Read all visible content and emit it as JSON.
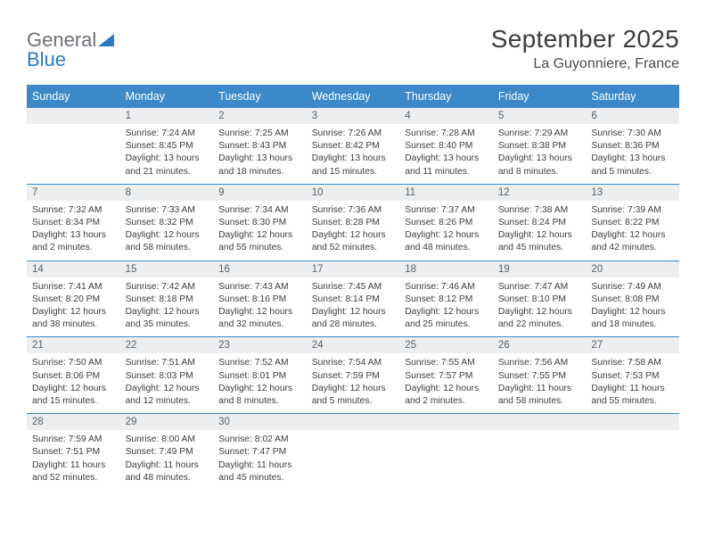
{
  "logo": {
    "word1": "General",
    "word2": "Blue"
  },
  "title": "September 2025",
  "location": "La Guyonniere, France",
  "colors": {
    "header_bg": "#3b89c9",
    "header_text": "#ffffff",
    "daynum_bg": "#eceeef",
    "daynum_text": "#5d6064",
    "row_divider": "#3b89c9",
    "body_text": "#3c3d3f",
    "logo_gray": "#6d7176",
    "logo_blue": "#2a7bbf"
  },
  "weekdays": [
    "Sunday",
    "Monday",
    "Tuesday",
    "Wednesday",
    "Thursday",
    "Friday",
    "Saturday"
  ],
  "weeks": [
    [
      {
        "empty": true
      },
      {
        "n": "1",
        "sr": "Sunrise: 7:24 AM",
        "ss": "Sunset: 8:45 PM",
        "d1": "Daylight: 13 hours",
        "d2": "and 21 minutes."
      },
      {
        "n": "2",
        "sr": "Sunrise: 7:25 AM",
        "ss": "Sunset: 8:43 PM",
        "d1": "Daylight: 13 hours",
        "d2": "and 18 minutes."
      },
      {
        "n": "3",
        "sr": "Sunrise: 7:26 AM",
        "ss": "Sunset: 8:42 PM",
        "d1": "Daylight: 13 hours",
        "d2": "and 15 minutes."
      },
      {
        "n": "4",
        "sr": "Sunrise: 7:28 AM",
        "ss": "Sunset: 8:40 PM",
        "d1": "Daylight: 13 hours",
        "d2": "and 11 minutes."
      },
      {
        "n": "5",
        "sr": "Sunrise: 7:29 AM",
        "ss": "Sunset: 8:38 PM",
        "d1": "Daylight: 13 hours",
        "d2": "and 8 minutes."
      },
      {
        "n": "6",
        "sr": "Sunrise: 7:30 AM",
        "ss": "Sunset: 8:36 PM",
        "d1": "Daylight: 13 hours",
        "d2": "and 5 minutes."
      }
    ],
    [
      {
        "n": "7",
        "sr": "Sunrise: 7:32 AM",
        "ss": "Sunset: 8:34 PM",
        "d1": "Daylight: 13 hours",
        "d2": "and 2 minutes."
      },
      {
        "n": "8",
        "sr": "Sunrise: 7:33 AM",
        "ss": "Sunset: 8:32 PM",
        "d1": "Daylight: 12 hours",
        "d2": "and 58 minutes."
      },
      {
        "n": "9",
        "sr": "Sunrise: 7:34 AM",
        "ss": "Sunset: 8:30 PM",
        "d1": "Daylight: 12 hours",
        "d2": "and 55 minutes."
      },
      {
        "n": "10",
        "sr": "Sunrise: 7:36 AM",
        "ss": "Sunset: 8:28 PM",
        "d1": "Daylight: 12 hours",
        "d2": "and 52 minutes."
      },
      {
        "n": "11",
        "sr": "Sunrise: 7:37 AM",
        "ss": "Sunset: 8:26 PM",
        "d1": "Daylight: 12 hours",
        "d2": "and 48 minutes."
      },
      {
        "n": "12",
        "sr": "Sunrise: 7:38 AM",
        "ss": "Sunset: 8:24 PM",
        "d1": "Daylight: 12 hours",
        "d2": "and 45 minutes."
      },
      {
        "n": "13",
        "sr": "Sunrise: 7:39 AM",
        "ss": "Sunset: 8:22 PM",
        "d1": "Daylight: 12 hours",
        "d2": "and 42 minutes."
      }
    ],
    [
      {
        "n": "14",
        "sr": "Sunrise: 7:41 AM",
        "ss": "Sunset: 8:20 PM",
        "d1": "Daylight: 12 hours",
        "d2": "and 38 minutes."
      },
      {
        "n": "15",
        "sr": "Sunrise: 7:42 AM",
        "ss": "Sunset: 8:18 PM",
        "d1": "Daylight: 12 hours",
        "d2": "and 35 minutes."
      },
      {
        "n": "16",
        "sr": "Sunrise: 7:43 AM",
        "ss": "Sunset: 8:16 PM",
        "d1": "Daylight: 12 hours",
        "d2": "and 32 minutes."
      },
      {
        "n": "17",
        "sr": "Sunrise: 7:45 AM",
        "ss": "Sunset: 8:14 PM",
        "d1": "Daylight: 12 hours",
        "d2": "and 28 minutes."
      },
      {
        "n": "18",
        "sr": "Sunrise: 7:46 AM",
        "ss": "Sunset: 8:12 PM",
        "d1": "Daylight: 12 hours",
        "d2": "and 25 minutes."
      },
      {
        "n": "19",
        "sr": "Sunrise: 7:47 AM",
        "ss": "Sunset: 8:10 PM",
        "d1": "Daylight: 12 hours",
        "d2": "and 22 minutes."
      },
      {
        "n": "20",
        "sr": "Sunrise: 7:49 AM",
        "ss": "Sunset: 8:08 PM",
        "d1": "Daylight: 12 hours",
        "d2": "and 18 minutes."
      }
    ],
    [
      {
        "n": "21",
        "sr": "Sunrise: 7:50 AM",
        "ss": "Sunset: 8:06 PM",
        "d1": "Daylight: 12 hours",
        "d2": "and 15 minutes."
      },
      {
        "n": "22",
        "sr": "Sunrise: 7:51 AM",
        "ss": "Sunset: 8:03 PM",
        "d1": "Daylight: 12 hours",
        "d2": "and 12 minutes."
      },
      {
        "n": "23",
        "sr": "Sunrise: 7:52 AM",
        "ss": "Sunset: 8:01 PM",
        "d1": "Daylight: 12 hours",
        "d2": "and 8 minutes."
      },
      {
        "n": "24",
        "sr": "Sunrise: 7:54 AM",
        "ss": "Sunset: 7:59 PM",
        "d1": "Daylight: 12 hours",
        "d2": "and 5 minutes."
      },
      {
        "n": "25",
        "sr": "Sunrise: 7:55 AM",
        "ss": "Sunset: 7:57 PM",
        "d1": "Daylight: 12 hours",
        "d2": "and 2 minutes."
      },
      {
        "n": "26",
        "sr": "Sunrise: 7:56 AM",
        "ss": "Sunset: 7:55 PM",
        "d1": "Daylight: 11 hours",
        "d2": "and 58 minutes."
      },
      {
        "n": "27",
        "sr": "Sunrise: 7:58 AM",
        "ss": "Sunset: 7:53 PM",
        "d1": "Daylight: 11 hours",
        "d2": "and 55 minutes."
      }
    ],
    [
      {
        "n": "28",
        "sr": "Sunrise: 7:59 AM",
        "ss": "Sunset: 7:51 PM",
        "d1": "Daylight: 11 hours",
        "d2": "and 52 minutes."
      },
      {
        "n": "29",
        "sr": "Sunrise: 8:00 AM",
        "ss": "Sunset: 7:49 PM",
        "d1": "Daylight: 11 hours",
        "d2": "and 48 minutes."
      },
      {
        "n": "30",
        "sr": "Sunrise: 8:02 AM",
        "ss": "Sunset: 7:47 PM",
        "d1": "Daylight: 11 hours",
        "d2": "and 45 minutes."
      },
      {
        "empty": true
      },
      {
        "empty": true
      },
      {
        "empty": true
      },
      {
        "empty": true
      }
    ]
  ]
}
